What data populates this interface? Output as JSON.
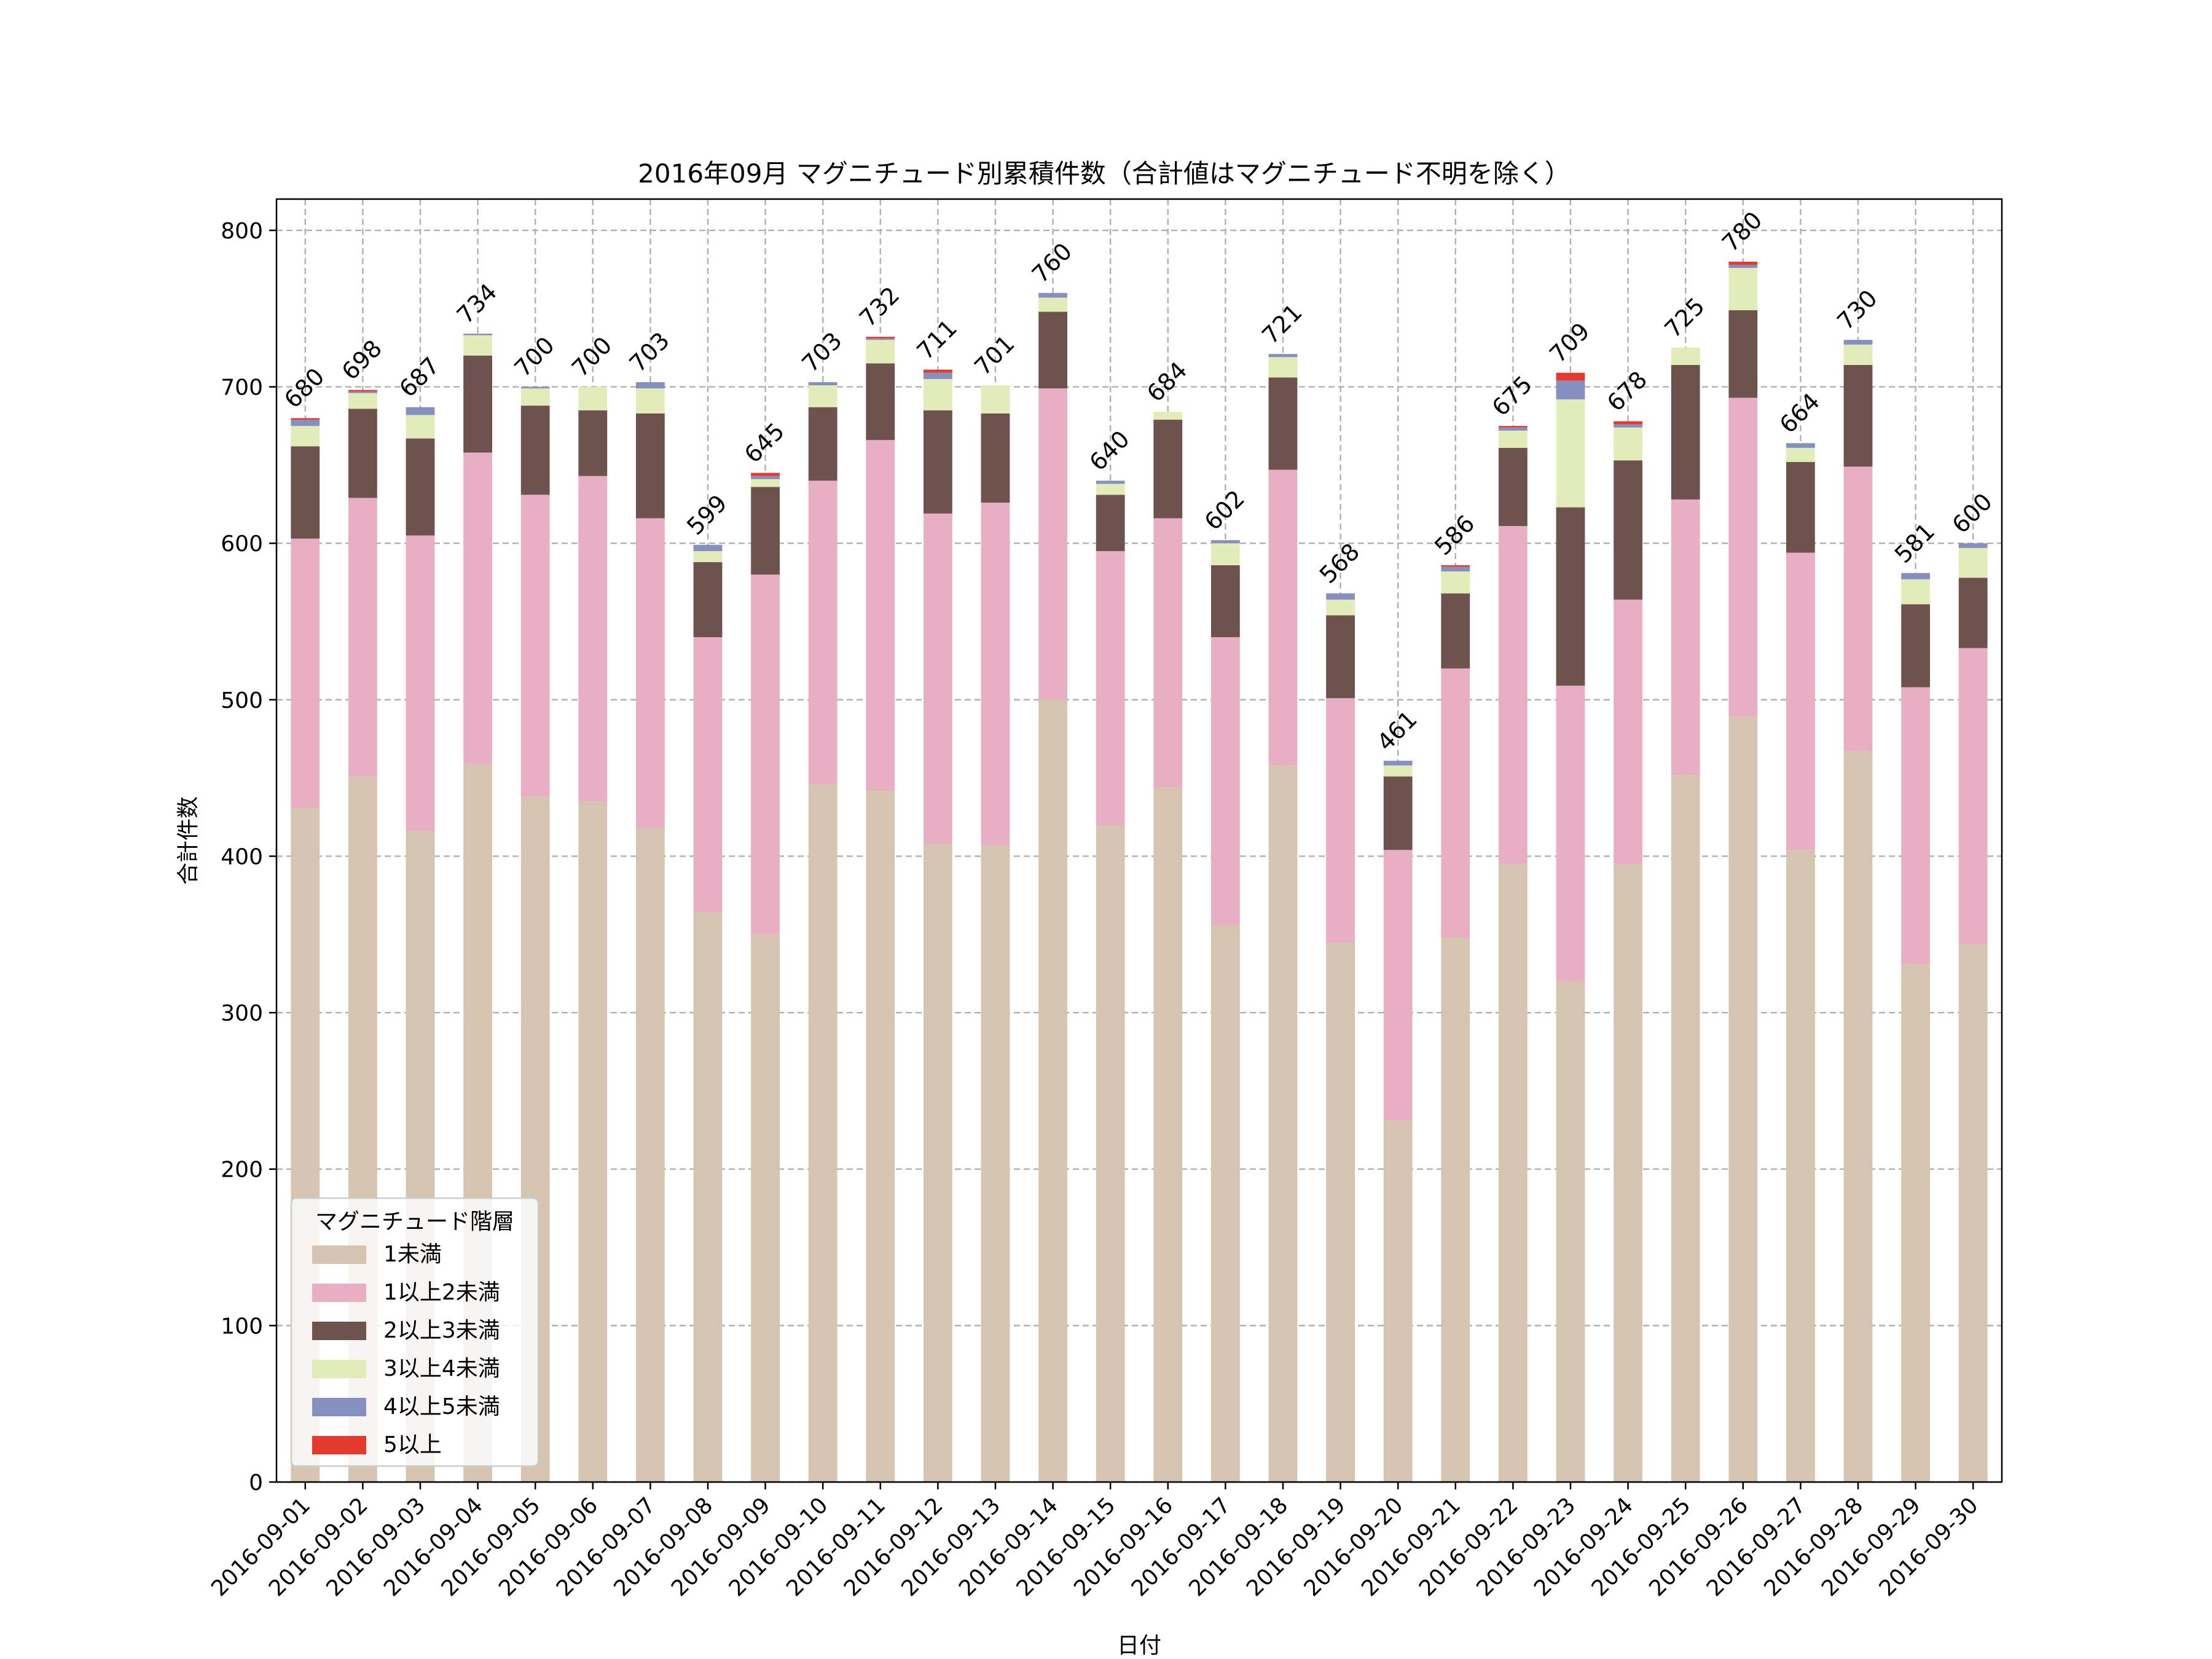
{
  "chart_data": {
    "type": "bar",
    "stacked": true,
    "title": "2016年09月 マグニチュード別累積件数（合計値はマグニチュード不明を除く）",
    "xlabel": "日付",
    "ylabel": "合計件数",
    "ylim": [
      0,
      820
    ],
    "yticks": [
      0,
      100,
      200,
      300,
      400,
      500,
      600,
      700,
      800
    ],
    "grid": true,
    "legend_position": "lower-left",
    "legend_title": "マグニチュード階層",
    "categories": [
      "2016-09-01",
      "2016-09-02",
      "2016-09-03",
      "2016-09-04",
      "2016-09-05",
      "2016-09-06",
      "2016-09-07",
      "2016-09-08",
      "2016-09-09",
      "2016-09-10",
      "2016-09-11",
      "2016-09-12",
      "2016-09-13",
      "2016-09-14",
      "2016-09-15",
      "2016-09-16",
      "2016-09-17",
      "2016-09-18",
      "2016-09-19",
      "2016-09-20",
      "2016-09-21",
      "2016-09-22",
      "2016-09-23",
      "2016-09-24",
      "2016-09-25",
      "2016-09-26",
      "2016-09-27",
      "2016-09-28",
      "2016-09-29",
      "2016-09-30"
    ],
    "series": [
      {
        "name": "1未満",
        "color": "#d5c4af",
        "values": [
          431,
          451,
          416,
          459,
          438,
          435,
          418,
          364,
          350,
          446,
          442,
          408,
          407,
          500,
          420,
          444,
          356,
          458,
          345,
          231,
          348,
          395,
          320,
          395,
          452,
          489,
          404,
          467,
          331,
          344
        ]
      },
      {
        "name": "1以上2未満",
        "color": "#e7aec4",
        "values": [
          172,
          178,
          189,
          199,
          193,
          208,
          198,
          176,
          230,
          194,
          224,
          211,
          219,
          199,
          175,
          172,
          184,
          189,
          156,
          173,
          172,
          216,
          189,
          169,
          176,
          204,
          190,
          182,
          177,
          189
        ]
      },
      {
        "name": "2以上3未満",
        "color": "#6d524d",
        "values": [
          59,
          57,
          62,
          62,
          57,
          42,
          67,
          48,
          56,
          47,
          49,
          66,
          57,
          49,
          36,
          63,
          46,
          59,
          53,
          47,
          48,
          50,
          114,
          89,
          86,
          56,
          58,
          65,
          53,
          45
        ]
      },
      {
        "name": "3以上4未満",
        "color": "#e1ecb9",
        "values": [
          13,
          10,
          15,
          13,
          11,
          15,
          16,
          7,
          5,
          14,
          15,
          20,
          18,
          9,
          7,
          5,
          14,
          13,
          10,
          7,
          14,
          11,
          69,
          21,
          11,
          27,
          9,
          13,
          16,
          19
        ]
      },
      {
        "name": "4以上5未満",
        "color": "#8590c1",
        "values": [
          4,
          1,
          5,
          1,
          1,
          0,
          4,
          4,
          2,
          2,
          1,
          4,
          0,
          3,
          2,
          0,
          2,
          2,
          4,
          3,
          3,
          2,
          12,
          2,
          0,
          2,
          3,
          3,
          4,
          3
        ]
      },
      {
        "name": "5以上",
        "color": "#e63a2f",
        "values": [
          1,
          1,
          0,
          0,
          0,
          0,
          0,
          0,
          2,
          0,
          1,
          2,
          0,
          0,
          0,
          0,
          0,
          0,
          0,
          0,
          1,
          1,
          5,
          2,
          0,
          2,
          0,
          0,
          0,
          0
        ]
      }
    ],
    "totals": [
      680,
      698,
      687,
      734,
      700,
      700,
      703,
      599,
      645,
      703,
      732,
      711,
      701,
      760,
      640,
      684,
      602,
      721,
      568,
      461,
      586,
      675,
      709,
      678,
      725,
      780,
      664,
      730,
      581,
      600
    ]
  }
}
